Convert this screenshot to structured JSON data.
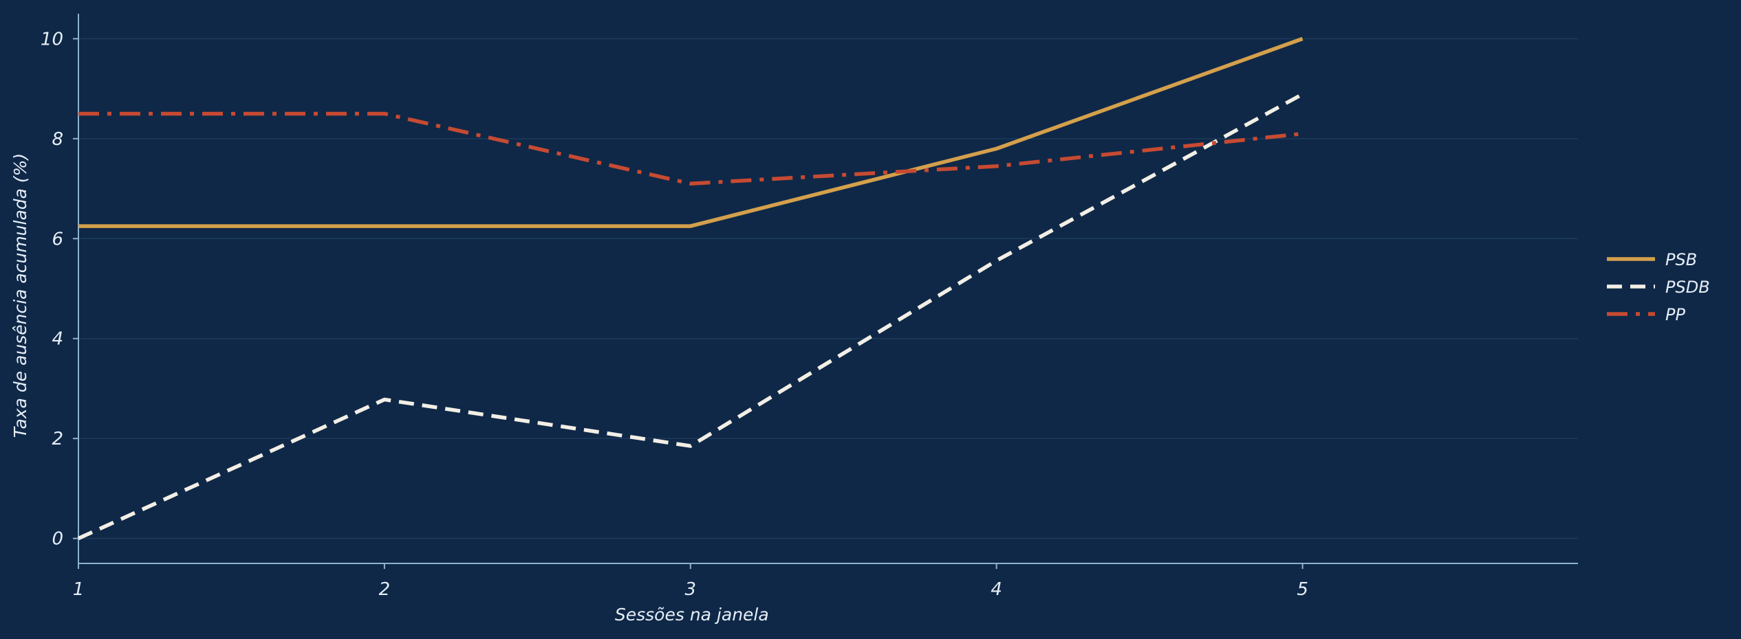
{
  "chart_data": {
    "type": "line",
    "title": "",
    "xlabel": "Sessões na janela",
    "ylabel": "Taxa de ausência acumulada (%)",
    "x": [
      1,
      2,
      3,
      4,
      5
    ],
    "xlim": [
      1,
      5.9
    ],
    "ylim": [
      -0.5,
      10.5
    ],
    "xticks": [
      "1",
      "2",
      "3",
      "4",
      "5"
    ],
    "yticks": [
      "0",
      "2",
      "4",
      "6",
      "8",
      "10"
    ],
    "grid": "horizontal",
    "legend_position": "right",
    "series": [
      {
        "name": "PSB",
        "values": [
          6.25,
          6.25,
          6.25,
          7.8,
          10.0
        ],
        "color": "#d4a04c",
        "dash": "solid"
      },
      {
        "name": "PSDB",
        "values": [
          0.0,
          2.78,
          1.85,
          5.56,
          8.89
        ],
        "color": "#f3efe6",
        "dash": "dashed"
      },
      {
        "name": "PP",
        "values": [
          8.5,
          8.5,
          7.1,
          7.45,
          8.1
        ],
        "color": "#c74a32",
        "dash": "dashdot"
      }
    ]
  },
  "colors": {
    "background": "#0f2847",
    "axis": "#8fb3cf",
    "grid": "#1e3a5c",
    "text": "#e6eef7"
  }
}
